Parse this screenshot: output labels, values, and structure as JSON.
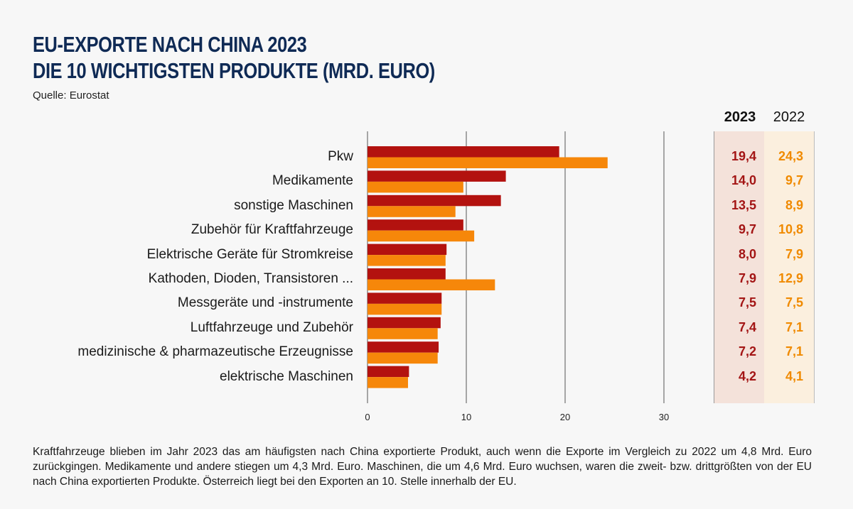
{
  "header": {
    "title_line1": "EU-EXPORTE NACH CHINA 2023",
    "title_line2": "DIE 10 WICHTIGSTEN PRODUKTE (MRD. EURO)",
    "source": "Quelle: Eurostat"
  },
  "table": {
    "col_2023": "2023",
    "col_2022": "2022",
    "values_2023": [
      "19,4",
      "14,0",
      "13,5",
      "9,7",
      "8,0",
      "7,9",
      "7,5",
      "7,4",
      "7,2",
      "4,2"
    ],
    "values_2022": [
      "24,3",
      "9,7",
      "8,9",
      "10,8",
      "7,9",
      "12,9",
      "7,5",
      "7,1",
      "7,1",
      "4,1"
    ]
  },
  "colors": {
    "series_2023": "#b3120f",
    "series_2022": "#f6870a",
    "title": "#0f2a55",
    "gridline": "#555555"
  },
  "chart_data": {
    "type": "bar",
    "orientation": "horizontal",
    "title": "EU-EXPORTE NACH CHINA 2023 DIE 10 WICHTIGSTEN PRODUKTE (MRD. EURO)",
    "categories": [
      "Pkw",
      "Medikamente",
      "sonstige Maschinen",
      "Zubehör für Kraftfahrzeuge",
      "Elektrische Geräte für Stromkreise",
      "Kathoden, Dioden, Transistoren ...",
      "Messgeräte und -instrumente",
      "Luftfahrzeuge und Zubehör",
      "medizinische & pharmazeutische Erzeugnisse",
      "elektrische Maschinen"
    ],
    "series": [
      {
        "name": "2023",
        "values": [
          19.4,
          14.0,
          13.5,
          9.7,
          8.0,
          7.9,
          7.5,
          7.4,
          7.2,
          4.2
        ]
      },
      {
        "name": "2022",
        "values": [
          24.3,
          9.7,
          8.9,
          10.8,
          7.9,
          12.9,
          7.5,
          7.1,
          7.1,
          4.1
        ]
      }
    ],
    "xlim": [
      0,
      30
    ],
    "xticks": [
      "0",
      "10",
      "20",
      "30"
    ],
    "grid": true,
    "legend": "table-right"
  },
  "footnote": "Kraftfahrzeuge blieben im Jahr 2023 das am häufigsten nach China exportierte Produkt, auch wenn die Exporte im Vergleich zu 2022 um 4,8 Mrd. Euro zurückgingen. Medikamente und andere stiegen um 4,3 Mrd. Euro. Maschinen, die um 4,6 Mrd. Euro wuchsen, waren die zweit- bzw. drittgrößten von der EU nach China exportierten Produkte. Österreich liegt bei den Exporten an 10. Stelle innerhalb der EU."
}
